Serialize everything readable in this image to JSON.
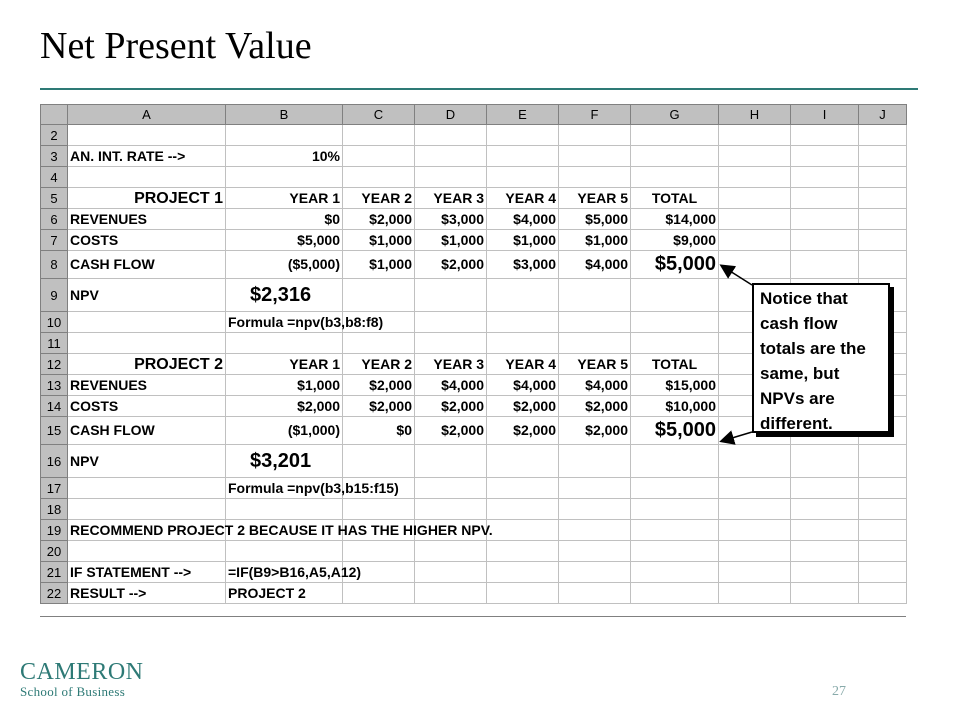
{
  "title": "Net Present Value",
  "columns": [
    "A",
    "B",
    "C",
    "D",
    "E",
    "F",
    "G",
    "H",
    "I",
    "J"
  ],
  "rows": [
    {
      "n": "2",
      "cells": [
        "",
        "",
        "",
        "",
        "",
        "",
        "",
        "",
        "",
        ""
      ]
    },
    {
      "n": "3",
      "cells": [
        "AN. INT. RATE -->",
        "10%",
        "",
        "",
        "",
        "",
        "",
        "",
        "",
        ""
      ]
    },
    {
      "n": "4",
      "cells": [
        "",
        "",
        "",
        "",
        "",
        "",
        "",
        "",
        "",
        ""
      ]
    },
    {
      "n": "5",
      "cells": [
        "PROJECT 1",
        "YEAR 1",
        "YEAR 2",
        "YEAR 3",
        "YEAR 4",
        "YEAR 5",
        "TOTAL",
        "",
        "",
        ""
      ]
    },
    {
      "n": "6",
      "cells": [
        "REVENUES",
        "$0",
        "$2,000",
        "$3,000",
        "$4,000",
        "$5,000",
        "$14,000",
        "",
        "",
        ""
      ]
    },
    {
      "n": "7",
      "cells": [
        "COSTS",
        "$5,000",
        "$1,000",
        "$1,000",
        "$1,000",
        "$1,000",
        "$9,000",
        "",
        "",
        ""
      ]
    },
    {
      "n": "8",
      "cells": [
        "CASH FLOW",
        "($5,000)",
        "$1,000",
        "$2,000",
        "$3,000",
        "$4,000",
        "$5,000",
        "",
        "",
        ""
      ]
    },
    {
      "n": "9",
      "cells": [
        "NPV",
        "$2,316",
        "",
        "",
        "",
        "",
        "",
        "",
        "",
        ""
      ]
    },
    {
      "n": "10",
      "cells": [
        "",
        "Formula =npv(b3,b8:f8)",
        "",
        "",
        "",
        "",
        "",
        "",
        "",
        ""
      ]
    },
    {
      "n": "11",
      "cells": [
        "",
        "",
        "",
        "",
        "",
        "",
        "",
        "",
        "",
        ""
      ]
    },
    {
      "n": "12",
      "cells": [
        "PROJECT 2",
        "YEAR 1",
        "YEAR 2",
        "YEAR 3",
        "YEAR 4",
        "YEAR 5",
        "TOTAL",
        "",
        "",
        ""
      ]
    },
    {
      "n": "13",
      "cells": [
        "REVENUES",
        "$1,000",
        "$2,000",
        "$4,000",
        "$4,000",
        "$4,000",
        "$15,000",
        "",
        "",
        ""
      ]
    },
    {
      "n": "14",
      "cells": [
        "COSTS",
        "$2,000",
        "$2,000",
        "$2,000",
        "$2,000",
        "$2,000",
        "$10,000",
        "",
        "",
        ""
      ]
    },
    {
      "n": "15",
      "cells": [
        "CASH FLOW",
        "($1,000)",
        "$0",
        "$2,000",
        "$2,000",
        "$2,000",
        "$5,000",
        "",
        "",
        ""
      ]
    },
    {
      "n": "16",
      "cells": [
        "NPV",
        "$3,201",
        "",
        "",
        "",
        "",
        "",
        "",
        "",
        ""
      ]
    },
    {
      "n": "17",
      "cells": [
        "",
        "Formula =npv(b3,b15:f15)",
        "",
        "",
        "",
        "",
        "",
        "",
        "",
        ""
      ]
    },
    {
      "n": "18",
      "cells": [
        "",
        "",
        "",
        "",
        "",
        "",
        "",
        "",
        "",
        ""
      ]
    },
    {
      "n": "19",
      "cells": [
        "RECOMMEND PROJECT 2 BECAUSE IT HAS THE HIGHER NPV.",
        "",
        "",
        "",
        "",
        "",
        "",
        "",
        "",
        ""
      ]
    },
    {
      "n": "20",
      "cells": [
        "",
        "",
        "",
        "",
        "",
        "",
        "",
        "",
        "",
        ""
      ]
    },
    {
      "n": "21",
      "cells": [
        "IF STATEMENT -->",
        "=IF(B9>B16,A5,A12)",
        "",
        "",
        "",
        "",
        "",
        "",
        "",
        ""
      ]
    },
    {
      "n": "22",
      "cells": [
        "RESULT -->",
        "PROJECT 2",
        "",
        "",
        "",
        "",
        "",
        "",
        "",
        ""
      ]
    }
  ],
  "callout": {
    "lines": [
      "Notice that",
      "cash flow",
      "totals are the",
      "same, but",
      "NPVs are",
      "different."
    ]
  },
  "logo": {
    "main": "CAMERON",
    "sub": "School of Business"
  },
  "page_number": "27",
  "colors": {
    "accent": "#2e7a76",
    "header_gray": "#c0c0c0"
  }
}
